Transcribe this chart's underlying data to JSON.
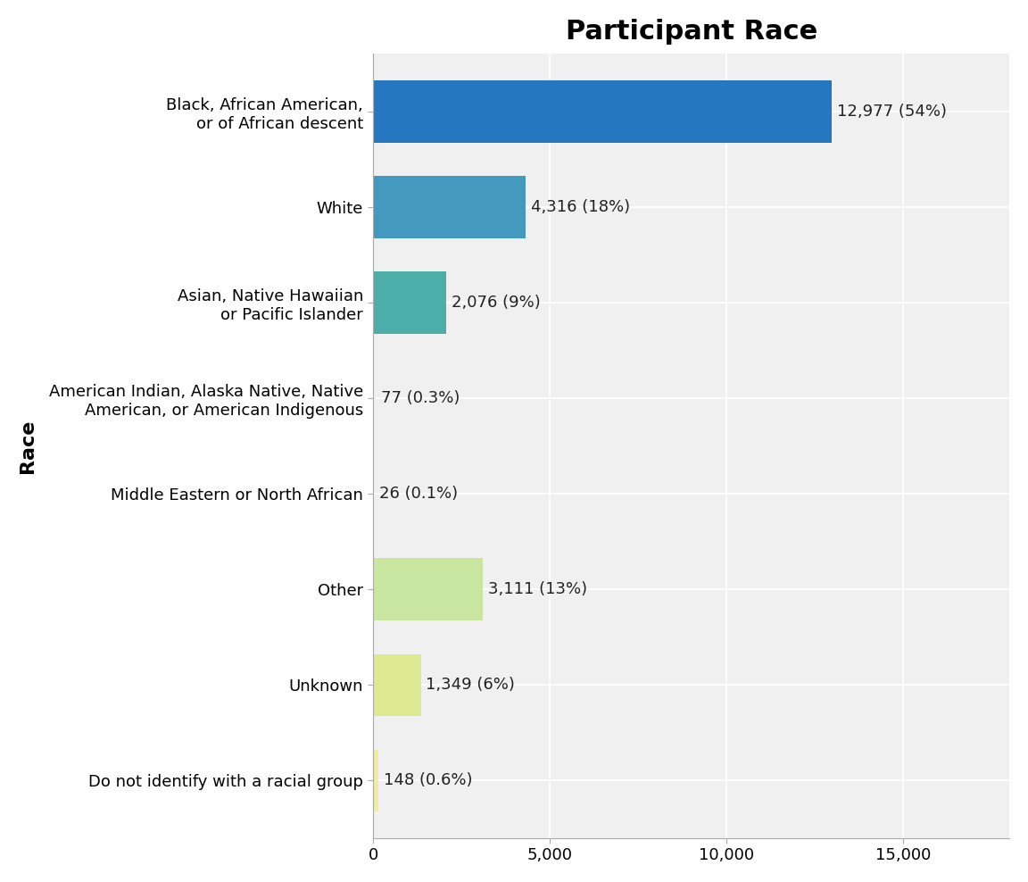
{
  "title": "Participant Race",
  "ylabel": "Race",
  "categories": [
    "Black, African American,\nor of African descent",
    "White",
    "Asian, Native Hawaiian\nor Pacific Islander",
    "American Indian, Alaska Native, Native\nAmerican, or American Indigenous",
    "Middle Eastern or North African",
    "Other",
    "Unknown",
    "Do not identify with a racial group"
  ],
  "values": [
    12977,
    4316,
    2076,
    77,
    26,
    3111,
    1349,
    148
  ],
  "labels": [
    "12,977 (54%)",
    "4,316 (18%)",
    "2,076 (9%)",
    "77 (0.3%)",
    "26 (0.1%)",
    "3,111 (13%)",
    "1,349 (6%)",
    "148 (0.6%)"
  ],
  "bar_colors": [
    "#2477C0",
    "#4399BE",
    "#4DADA8",
    "#e8f5e9",
    "#e8f5e9",
    "#c8e6a0",
    "#dde890",
    "#f0ee98"
  ],
  "xlim": [
    0,
    18000
  ],
  "xticks": [
    0,
    5000,
    10000,
    15000
  ],
  "xtick_labels": [
    "0",
    "5,000",
    "10,000",
    "15,000"
  ],
  "background_color": "#f0f0f0",
  "plot_bg_color": "#f0f0f0",
  "grid_color": "#ffffff",
  "title_fontsize": 22,
  "label_fontsize": 13,
  "tick_fontsize": 13,
  "ylabel_fontsize": 16,
  "bar_height": 0.65
}
